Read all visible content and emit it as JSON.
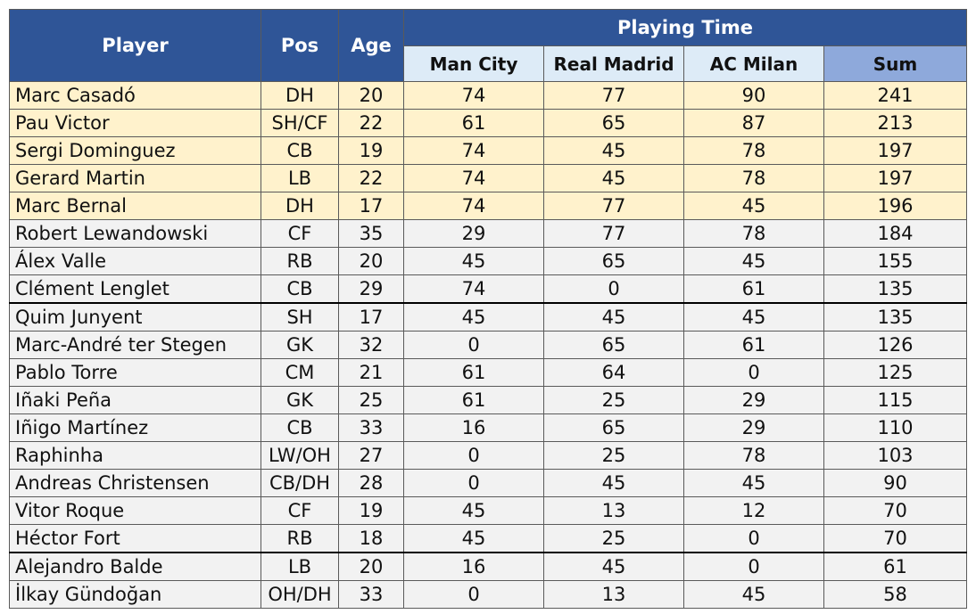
{
  "headers": {
    "player": "Player",
    "pos": "Pos",
    "age": "Age",
    "playing_time": "Playing Time",
    "man_city": "Man City",
    "real_madrid": "Real Madrid",
    "ac_milan": "AC Milan",
    "sum": "Sum"
  },
  "colors": {
    "header_bg": "#2f5597",
    "subheader_bg": "#ddebf7",
    "sum_header_bg": "#8ea9db",
    "highlight_row_bg": "#fff2cc",
    "normal_row_bg": "#f2f2f2"
  },
  "rows": [
    {
      "player": "Marc Casadó",
      "pos": "DH",
      "age": "20",
      "man_city": "74",
      "real_madrid": "77",
      "ac_milan": "90",
      "sum": "241",
      "highlight": true
    },
    {
      "player": "Pau Victor",
      "pos": "SH/CF",
      "age": "22",
      "man_city": "61",
      "real_madrid": "65",
      "ac_milan": "87",
      "sum": "213",
      "highlight": true
    },
    {
      "player": "Sergi Dominguez",
      "pos": "CB",
      "age": "19",
      "man_city": "74",
      "real_madrid": "45",
      "ac_milan": "78",
      "sum": "197",
      "highlight": true
    },
    {
      "player": "Gerard Martin",
      "pos": "LB",
      "age": "22",
      "man_city": "74",
      "real_madrid": "45",
      "ac_milan": "78",
      "sum": "197",
      "highlight": true
    },
    {
      "player": "Marc Bernal",
      "pos": "DH",
      "age": "17",
      "man_city": "74",
      "real_madrid": "77",
      "ac_milan": "45",
      "sum": "196",
      "highlight": true
    },
    {
      "player": "Robert Lewandowski",
      "pos": "CF",
      "age": "35",
      "man_city": "29",
      "real_madrid": "77",
      "ac_milan": "78",
      "sum": "184",
      "highlight": false
    },
    {
      "player": "Álex Valle",
      "pos": "RB",
      "age": "20",
      "man_city": "45",
      "real_madrid": "65",
      "ac_milan": "45",
      "sum": "155",
      "highlight": false
    },
    {
      "player": "Clément Lenglet",
      "pos": "CB",
      "age": "29",
      "man_city": "74",
      "real_madrid": "0",
      "ac_milan": "61",
      "sum": "135",
      "highlight": false
    },
    {
      "player": "Quim Junyent",
      "pos": "SH",
      "age": "17",
      "man_city": "45",
      "real_madrid": "45",
      "ac_milan": "45",
      "sum": "135",
      "highlight": false,
      "thick_top": true
    },
    {
      "player": "Marc-André ter Stegen",
      "pos": "GK",
      "age": "32",
      "man_city": "0",
      "real_madrid": "65",
      "ac_milan": "61",
      "sum": "126",
      "highlight": false
    },
    {
      "player": "Pablo Torre",
      "pos": "CM",
      "age": "21",
      "man_city": "61",
      "real_madrid": "64",
      "ac_milan": "0",
      "sum": "125",
      "highlight": false
    },
    {
      "player": "Iñaki Peña",
      "pos": "GK",
      "age": "25",
      "man_city": "61",
      "real_madrid": "25",
      "ac_milan": "29",
      "sum": "115",
      "highlight": false
    },
    {
      "player": "Iñigo Martínez",
      "pos": "CB",
      "age": "33",
      "man_city": "16",
      "real_madrid": "65",
      "ac_milan": "29",
      "sum": "110",
      "highlight": false
    },
    {
      "player": "Raphinha",
      "pos": "LW/OH",
      "age": "27",
      "man_city": "0",
      "real_madrid": "25",
      "ac_milan": "78",
      "sum": "103",
      "highlight": false
    },
    {
      "player": "Andreas Christensen",
      "pos": "CB/DH",
      "age": "28",
      "man_city": "0",
      "real_madrid": "45",
      "ac_milan": "45",
      "sum": "90",
      "highlight": false
    },
    {
      "player": "Vitor Roque",
      "pos": "CF",
      "age": "19",
      "man_city": "45",
      "real_madrid": "13",
      "ac_milan": "12",
      "sum": "70",
      "highlight": false
    },
    {
      "player": "Héctor Fort",
      "pos": "RB",
      "age": "18",
      "man_city": "45",
      "real_madrid": "25",
      "ac_milan": "0",
      "sum": "70",
      "highlight": false
    },
    {
      "player": "Alejandro Balde",
      "pos": "LB",
      "age": "20",
      "man_city": "16",
      "real_madrid": "45",
      "ac_milan": "0",
      "sum": "61",
      "highlight": false,
      "thick_top": true
    },
    {
      "player": "İlkay Gündoğan",
      "pos": "OH/DH",
      "age": "33",
      "man_city": "0",
      "real_madrid": "13",
      "ac_milan": "45",
      "sum": "58",
      "highlight": false
    }
  ]
}
